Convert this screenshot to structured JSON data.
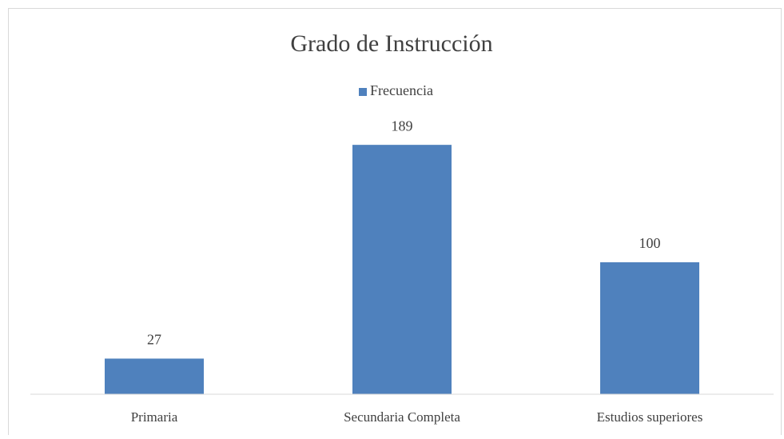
{
  "chart_data": {
    "type": "bar",
    "title": "Grado de Instrucción",
    "categories": [
      "Primaria",
      "Secundaria Completa",
      "Estudios superiores"
    ],
    "series": [
      {
        "name": "Frecuencia",
        "color": "#4f81bd",
        "values": [
          27,
          189,
          100
        ]
      }
    ],
    "ylim": [
      0,
      200
    ],
    "legend": "top",
    "grid": false
  }
}
